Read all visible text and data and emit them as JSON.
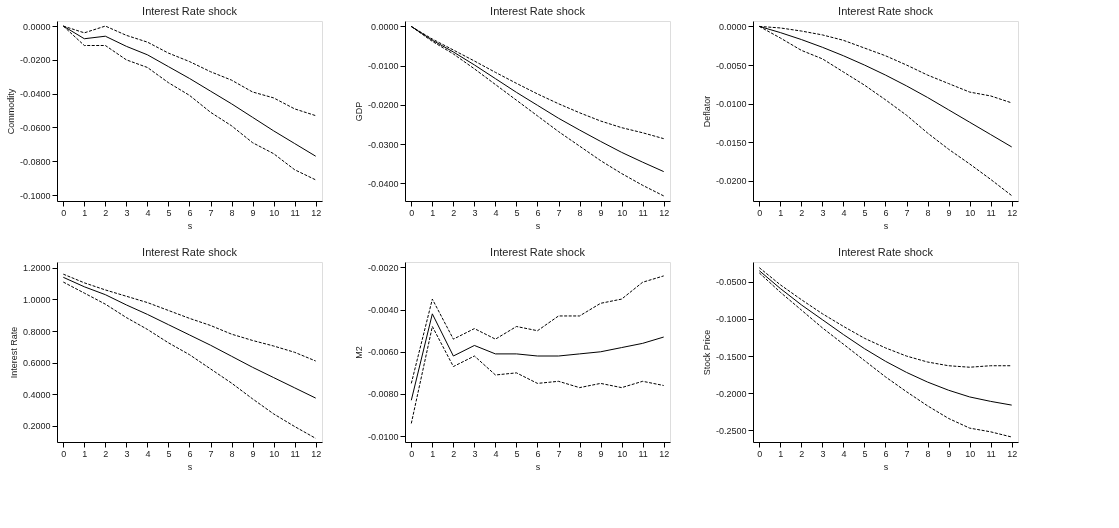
{
  "chart_data": [
    {
      "type": "line",
      "title": "Interest Rate shock",
      "xlabel": "s",
      "ylabel": "Commodity",
      "x": [
        0,
        1,
        2,
        3,
        4,
        5,
        6,
        7,
        8,
        9,
        10,
        11,
        12
      ],
      "xlim": [
        -0.3,
        12.3
      ],
      "xticks": [
        0,
        1,
        2,
        3,
        4,
        5,
        6,
        7,
        8,
        9,
        10,
        11,
        12
      ],
      "ylim": [
        -0.1035,
        0.003
      ],
      "yticks": [
        {
          "value": 0,
          "label": "0.0000"
        },
        {
          "value": -0.02,
          "label": "-0.0200"
        },
        {
          "value": -0.04,
          "label": "-0.0400"
        },
        {
          "value": -0.06,
          "label": "-0.0600"
        },
        {
          "value": -0.08,
          "label": "-0.0800"
        },
        {
          "value": -0.1,
          "label": "-0.1000"
        }
      ],
      "grid": false,
      "series": [
        {
          "color": "#000000",
          "line_style": "solid",
          "values": [
            0,
            -0.0075,
            -0.006,
            -0.012,
            -0.017,
            -0.024,
            -0.031,
            -0.0385,
            -0.046,
            -0.054,
            -0.062,
            -0.0695,
            -0.077
          ]
        },
        {
          "color": "#000000",
          "line_style": "dashed",
          "values": [
            0,
            -0.004,
            0,
            -0.0055,
            -0.0095,
            -0.016,
            -0.021,
            -0.027,
            -0.032,
            -0.039,
            -0.0425,
            -0.049,
            -0.053
          ]
        },
        {
          "color": "#000000",
          "line_style": "dashed",
          "values": [
            0,
            -0.0115,
            -0.0115,
            -0.02,
            -0.0245,
            -0.0335,
            -0.041,
            -0.051,
            -0.059,
            -0.069,
            -0.0755,
            -0.085,
            -0.091
          ]
        }
      ]
    },
    {
      "type": "line",
      "title": "Interest Rate shock",
      "xlabel": "s",
      "ylabel": "GDP",
      "x": [
        0,
        1,
        2,
        3,
        4,
        5,
        6,
        7,
        8,
        9,
        10,
        11,
        12
      ],
      "xlim": [
        -0.3,
        12.3
      ],
      "xticks": [
        0,
        1,
        2,
        3,
        4,
        5,
        6,
        7,
        8,
        9,
        10,
        11,
        12
      ],
      "ylim": [
        -0.0445,
        0.0014
      ],
      "yticks": [
        {
          "value": 0,
          "label": "0.0000"
        },
        {
          "value": -0.01,
          "label": "-0.0100"
        },
        {
          "value": -0.02,
          "label": "-0.0200"
        },
        {
          "value": -0.03,
          "label": "-0.0300"
        },
        {
          "value": -0.04,
          "label": "-0.0400"
        }
      ],
      "grid": false,
      "series": [
        {
          "color": "#000000",
          "line_style": "solid",
          "values": [
            0,
            -0.0035,
            -0.0065,
            -0.0098,
            -0.0133,
            -0.0168,
            -0.0201,
            -0.0234,
            -0.0264,
            -0.0293,
            -0.0321,
            -0.0346,
            -0.037
          ]
        },
        {
          "color": "#000000",
          "line_style": "dashed",
          "values": [
            0,
            -0.0032,
            -0.006,
            -0.0088,
            -0.0117,
            -0.0145,
            -0.0172,
            -0.0197,
            -0.022,
            -0.0241,
            -0.0258,
            -0.0271,
            -0.0286
          ]
        },
        {
          "color": "#000000",
          "line_style": "dashed",
          "values": [
            0,
            -0.0038,
            -0.007,
            -0.0108,
            -0.0148,
            -0.0188,
            -0.0228,
            -0.0268,
            -0.0305,
            -0.0342,
            -0.0375,
            -0.0405,
            -0.0432
          ]
        }
      ]
    },
    {
      "type": "line",
      "title": "Interest Rate shock",
      "xlabel": "s",
      "ylabel": "Deflator",
      "x": [
        0,
        1,
        2,
        3,
        4,
        5,
        6,
        7,
        8,
        9,
        10,
        11,
        12
      ],
      "xlim": [
        -0.3,
        12.3
      ],
      "xticks": [
        0,
        1,
        2,
        3,
        4,
        5,
        6,
        7,
        8,
        9,
        10,
        11,
        12
      ],
      "ylim": [
        -0.0226,
        0.0007
      ],
      "yticks": [
        {
          "value": 0,
          "label": "0.0000"
        },
        {
          "value": -0.005,
          "label": "-0.0050"
        },
        {
          "value": -0.01,
          "label": "-0.0100"
        },
        {
          "value": -0.015,
          "label": "-0.0150"
        },
        {
          "value": -0.02,
          "label": "-0.0200"
        }
      ],
      "grid": false,
      "series": [
        {
          "color": "#000000",
          "line_style": "solid",
          "values": [
            0,
            -0.0008,
            -0.0017,
            -0.0027,
            -0.0038,
            -0.005,
            -0.0063,
            -0.0077,
            -0.0092,
            -0.0108,
            -0.0124,
            -0.014,
            -0.0156
          ]
        },
        {
          "color": "#000000",
          "line_style": "dashed",
          "values": [
            0,
            -0.0002,
            -0.0006,
            -0.0011,
            -0.0018,
            -0.0028,
            -0.0038,
            -0.005,
            -0.0063,
            -0.0074,
            -0.0085,
            -0.009,
            -0.0099
          ]
        },
        {
          "color": "#000000",
          "line_style": "dashed",
          "values": [
            0,
            -0.0015,
            -0.0031,
            -0.0042,
            -0.0059,
            -0.0076,
            -0.0095,
            -0.0115,
            -0.0138,
            -0.0159,
            -0.0178,
            -0.0198,
            -0.0219
          ]
        }
      ]
    },
    {
      "type": "line",
      "title": "Interest Rate shock",
      "xlabel": "s",
      "ylabel": "Interest Rate",
      "x": [
        0,
        1,
        2,
        3,
        4,
        5,
        6,
        7,
        8,
        9,
        10,
        11,
        12
      ],
      "xlim": [
        -0.3,
        12.3
      ],
      "xticks": [
        0,
        1,
        2,
        3,
        4,
        5,
        6,
        7,
        8,
        9,
        10,
        11,
        12
      ],
      "ylim": [
        0.097,
        1.237
      ],
      "yticks": [
        {
          "value": 0.2,
          "label": "0.2000"
        },
        {
          "value": 0.4,
          "label": "0.4000"
        },
        {
          "value": 0.6,
          "label": "0.6000"
        },
        {
          "value": 0.8,
          "label": "0.8000"
        },
        {
          "value": 1,
          "label": "1.0000"
        },
        {
          "value": 1.2,
          "label": "1.2000"
        }
      ],
      "grid": false,
      "series": [
        {
          "color": "#000000",
          "line_style": "solid",
          "values": [
            1.14,
            1.08,
            1.03,
            0.965,
            0.905,
            0.84,
            0.775,
            0.71,
            0.64,
            0.57,
            0.505,
            0.44,
            0.375
          ]
        },
        {
          "color": "#000000",
          "line_style": "dashed",
          "values": [
            1.16,
            1.105,
            1.06,
            1.02,
            0.98,
            0.93,
            0.88,
            0.835,
            0.78,
            0.74,
            0.705,
            0.665,
            0.61
          ]
        },
        {
          "color": "#000000",
          "line_style": "dashed",
          "values": [
            1.11,
            1.04,
            0.97,
            0.885,
            0.81,
            0.725,
            0.65,
            0.56,
            0.47,
            0.37,
            0.275,
            0.195,
            0.12
          ]
        }
      ]
    },
    {
      "type": "line",
      "title": "Interest Rate shock",
      "xlabel": "s",
      "ylabel": "M2",
      "x": [
        0,
        1,
        2,
        3,
        4,
        5,
        6,
        7,
        8,
        9,
        10,
        11,
        12
      ],
      "xlim": [
        -0.3,
        12.3
      ],
      "xticks": [
        0,
        1,
        2,
        3,
        4,
        5,
        6,
        7,
        8,
        9,
        10,
        11,
        12
      ],
      "ylim": [
        -0.01028,
        -0.00174
      ],
      "yticks": [
        {
          "value": -0.002,
          "label": "-0.0020"
        },
        {
          "value": -0.004,
          "label": "-0.0040"
        },
        {
          "value": -0.006,
          "label": "-0.0060"
        },
        {
          "value": -0.008,
          "label": "-0.0080"
        },
        {
          "value": -0.01,
          "label": "-0.0100"
        }
      ],
      "grid": false,
      "series": [
        {
          "color": "#000000",
          "line_style": "solid",
          "values": [
            -0.0083,
            -0.0042,
            -0.0062,
            -0.0057,
            -0.0061,
            -0.0061,
            -0.0062,
            -0.0062,
            -0.0061,
            -0.006,
            -0.0058,
            -0.0056,
            -0.0053
          ]
        },
        {
          "color": "#000000",
          "line_style": "dashed",
          "values": [
            -0.0075,
            -0.0035,
            -0.0054,
            -0.0049,
            -0.0054,
            -0.0048,
            -0.005,
            -0.0043,
            -0.0043,
            -0.0037,
            -0.0035,
            -0.0027,
            -0.0024
          ]
        },
        {
          "color": "#000000",
          "line_style": "dashed",
          "values": [
            -0.0094,
            -0.0048,
            -0.0067,
            -0.0062,
            -0.0071,
            -0.007,
            -0.0075,
            -0.0074,
            -0.0077,
            -0.0075,
            -0.0077,
            -0.0074,
            -0.0076
          ]
        }
      ]
    },
    {
      "type": "line",
      "title": "Interest Rate shock",
      "xlabel": "s",
      "ylabel": "Stock Price",
      "x": [
        0,
        1,
        2,
        3,
        4,
        5,
        6,
        7,
        8,
        9,
        10,
        11,
        12
      ],
      "xlim": [
        -0.3,
        12.3
      ],
      "xticks": [
        0,
        1,
        2,
        3,
        4,
        5,
        6,
        7,
        8,
        9,
        10,
        11,
        12
      ],
      "ylim": [
        -0.2657,
        -0.0233
      ],
      "yticks": [
        {
          "value": -0.05,
          "label": "-0.0500"
        },
        {
          "value": -0.1,
          "label": "-0.1000"
        },
        {
          "value": -0.15,
          "label": "-0.1500"
        },
        {
          "value": -0.2,
          "label": "-0.2000"
        },
        {
          "value": -0.25,
          "label": "-0.2500"
        }
      ],
      "grid": false,
      "series": [
        {
          "color": "#000000",
          "line_style": "solid",
          "values": [
            -0.035,
            -0.059,
            -0.081,
            -0.101,
            -0.121,
            -0.14,
            -0.157,
            -0.172,
            -0.185,
            -0.196,
            -0.205,
            -0.211,
            -0.216
          ]
        },
        {
          "color": "#000000",
          "line_style": "dashed",
          "values": [
            -0.031,
            -0.054,
            -0.074,
            -0.093,
            -0.11,
            -0.126,
            -0.139,
            -0.15,
            -0.158,
            -0.163,
            -0.165,
            -0.163,
            -0.163
          ]
        },
        {
          "color": "#000000",
          "line_style": "dashed",
          "values": [
            -0.038,
            -0.064,
            -0.088,
            -0.112,
            -0.134,
            -0.156,
            -0.178,
            -0.198,
            -0.217,
            -0.234,
            -0.247,
            -0.252,
            -0.259
          ]
        }
      ]
    }
  ]
}
